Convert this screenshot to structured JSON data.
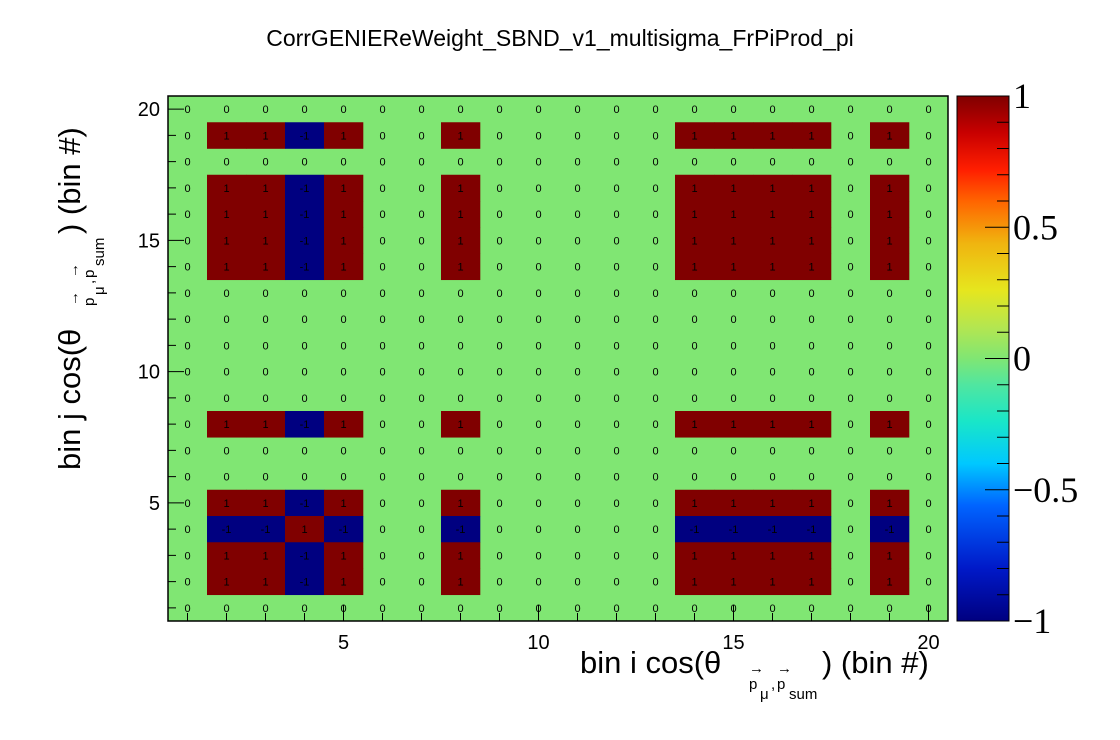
{
  "chart_data": {
    "type": "heatmap",
    "title": "CorrGENIEReWeight_SBND_v1_multisigma_FrPiProd_pi",
    "xlabel": {
      "prefix": "bin i cos(θ",
      "sub1": "p",
      "arrow": "→",
      "sub_mu": "μ",
      "sep": ",",
      "sub2": "p",
      "sub_sum": "sum",
      "suffix": ") (bin #)"
    },
    "ylabel": {
      "prefix": "bin j cos(θ",
      "sub1": "p",
      "arrow": "→",
      "sub_mu": "μ",
      "sep": ",",
      "sub2": "p",
      "sub_sum": "sum",
      "suffix": ") (bin #)"
    },
    "xlim": [
      0.5,
      20.5
    ],
    "ylim": [
      0.5,
      20.5
    ],
    "x_ticks": [
      5,
      10,
      15,
      20
    ],
    "y_ticks": [
      5,
      10,
      15,
      20
    ],
    "zlim": [
      -1,
      1
    ],
    "colorbar_ticks": [
      "1",
      "0.5",
      "0",
      "−0.5",
      "−1"
    ],
    "grid": false,
    "n_bins": 20,
    "correlated_bins": [
      2,
      3,
      4,
      5,
      8,
      14,
      15,
      16,
      17,
      19
    ],
    "anti_bins": [
      4
    ],
    "colors": {
      "high": "#800000",
      "zero": "#80e673",
      "low": "#000080"
    },
    "rows": [
      {
        "bin": 20,
        "values": [
          "0",
          "0",
          "0",
          "0",
          "0",
          "0",
          "0",
          "0",
          "0",
          "0",
          "0",
          "0",
          "0",
          "0",
          "0",
          "0",
          "0",
          "0",
          "0",
          "0"
        ]
      },
      {
        "bin": 19,
        "values": [
          "0",
          "1",
          "1",
          "-1",
          "1",
          "0",
          "0",
          "1",
          "0",
          "0",
          "0",
          "0",
          "0",
          "1",
          "1",
          "1",
          "1",
          "0",
          "1",
          "0"
        ]
      },
      {
        "bin": 18,
        "values": [
          "0",
          "0",
          "0",
          "0",
          "0",
          "0",
          "0",
          "0",
          "0",
          "0",
          "0",
          "0",
          "0",
          "0",
          "0",
          "0",
          "0",
          "0",
          "0",
          "0"
        ]
      },
      {
        "bin": 17,
        "values": [
          "0",
          "1",
          "1",
          "-1",
          "1",
          "0",
          "0",
          "1",
          "0",
          "0",
          "0",
          "0",
          "0",
          "1",
          "1",
          "1",
          "1",
          "0",
          "1",
          "0"
        ]
      },
      {
        "bin": 16,
        "values": [
          "0",
          "1",
          "1",
          "-1",
          "1",
          "0",
          "0",
          "1",
          "0",
          "0",
          "0",
          "0",
          "0",
          "1",
          "1",
          "1",
          "1",
          "0",
          "1",
          "0"
        ]
      },
      {
        "bin": 15,
        "values": [
          "0",
          "1",
          "1",
          "-1",
          "1",
          "0",
          "0",
          "1",
          "0",
          "0",
          "0",
          "0",
          "0",
          "1",
          "1",
          "1",
          "1",
          "0",
          "1",
          "0"
        ]
      },
      {
        "bin": 14,
        "values": [
          "0",
          "1",
          "1",
          "-1",
          "1",
          "0",
          "0",
          "1",
          "0",
          "0",
          "0",
          "0",
          "0",
          "1",
          "1",
          "1",
          "1",
          "0",
          "1",
          "0"
        ]
      },
      {
        "bin": 13,
        "values": [
          "0",
          "0",
          "0",
          "0",
          "0",
          "0",
          "0",
          "0",
          "0",
          "0",
          "0",
          "0",
          "0",
          "0",
          "0",
          "0",
          "0",
          "0",
          "0",
          "0"
        ]
      },
      {
        "bin": 12,
        "values": [
          "0",
          "0",
          "0",
          "0",
          "0",
          "0",
          "0",
          "0",
          "0",
          "0",
          "0",
          "0",
          "0",
          "0",
          "0",
          "0",
          "0",
          "0",
          "0",
          "0"
        ]
      },
      {
        "bin": 11,
        "values": [
          "0",
          "0",
          "0",
          "0",
          "0",
          "0",
          "0",
          "0",
          "0",
          "0",
          "0",
          "0",
          "0",
          "0",
          "0",
          "0",
          "0",
          "0",
          "0",
          "0"
        ]
      },
      {
        "bin": 10,
        "values": [
          "0",
          "0",
          "0",
          "0",
          "0",
          "0",
          "0",
          "0",
          "0",
          "0",
          "0",
          "0",
          "0",
          "0",
          "0",
          "0",
          "0",
          "0",
          "0",
          "0"
        ]
      },
      {
        "bin": 9,
        "values": [
          "0",
          "0",
          "0",
          "0",
          "0",
          "0",
          "0",
          "0",
          "0",
          "0",
          "0",
          "0",
          "0",
          "0",
          "0",
          "0",
          "0",
          "0",
          "0",
          "0"
        ]
      },
      {
        "bin": 8,
        "values": [
          "0",
          "1",
          "1",
          "-1",
          "1",
          "0",
          "0",
          "1",
          "0",
          "0",
          "0",
          "0",
          "0",
          "1",
          "1",
          "1",
          "1",
          "0",
          "1",
          "0"
        ]
      },
      {
        "bin": 7,
        "values": [
          "0",
          "0",
          "0",
          "0",
          "0",
          "0",
          "0",
          "0",
          "0",
          "0",
          "0",
          "0",
          "0",
          "0",
          "0",
          "0",
          "0",
          "0",
          "0",
          "0"
        ]
      },
      {
        "bin": 6,
        "values": [
          "0",
          "0",
          "0",
          "0",
          "0",
          "0",
          "0",
          "0",
          "0",
          "0",
          "0",
          "0",
          "0",
          "0",
          "0",
          "0",
          "0",
          "0",
          "0",
          "0"
        ]
      },
      {
        "bin": 5,
        "values": [
          "0",
          "1",
          "1",
          "-1",
          "1",
          "0",
          "0",
          "1",
          "0",
          "0",
          "0",
          "0",
          "0",
          "1",
          "1",
          "1",
          "1",
          "0",
          "1",
          "0"
        ]
      },
      {
        "bin": 4,
        "values": [
          "0",
          "-1",
          "-1",
          "1",
          "-1",
          "0",
          "0",
          "-1",
          "0",
          "0",
          "0",
          "0",
          "0",
          "-1",
          "-1",
          "-1",
          "-1",
          "0",
          "-1",
          "0"
        ]
      },
      {
        "bin": 3,
        "values": [
          "0",
          "1",
          "1",
          "-1",
          "1",
          "0",
          "0",
          "1",
          "0",
          "0",
          "0",
          "0",
          "0",
          "1",
          "1",
          "1",
          "1",
          "0",
          "1",
          "0"
        ]
      },
      {
        "bin": 2,
        "values": [
          "0",
          "1",
          "1",
          "-1",
          "1",
          "0",
          "0",
          "1",
          "0",
          "0",
          "0",
          "0",
          "0",
          "1",
          "1",
          "1",
          "1",
          "0",
          "1",
          "0"
        ]
      },
      {
        "bin": 1,
        "values": [
          "0",
          "0",
          "0",
          "0",
          "0",
          "0",
          "0",
          "0",
          "0",
          "0",
          "0",
          "0",
          "0",
          "0",
          "0",
          "0",
          "0",
          "0",
          "0",
          "0"
        ]
      }
    ]
  }
}
